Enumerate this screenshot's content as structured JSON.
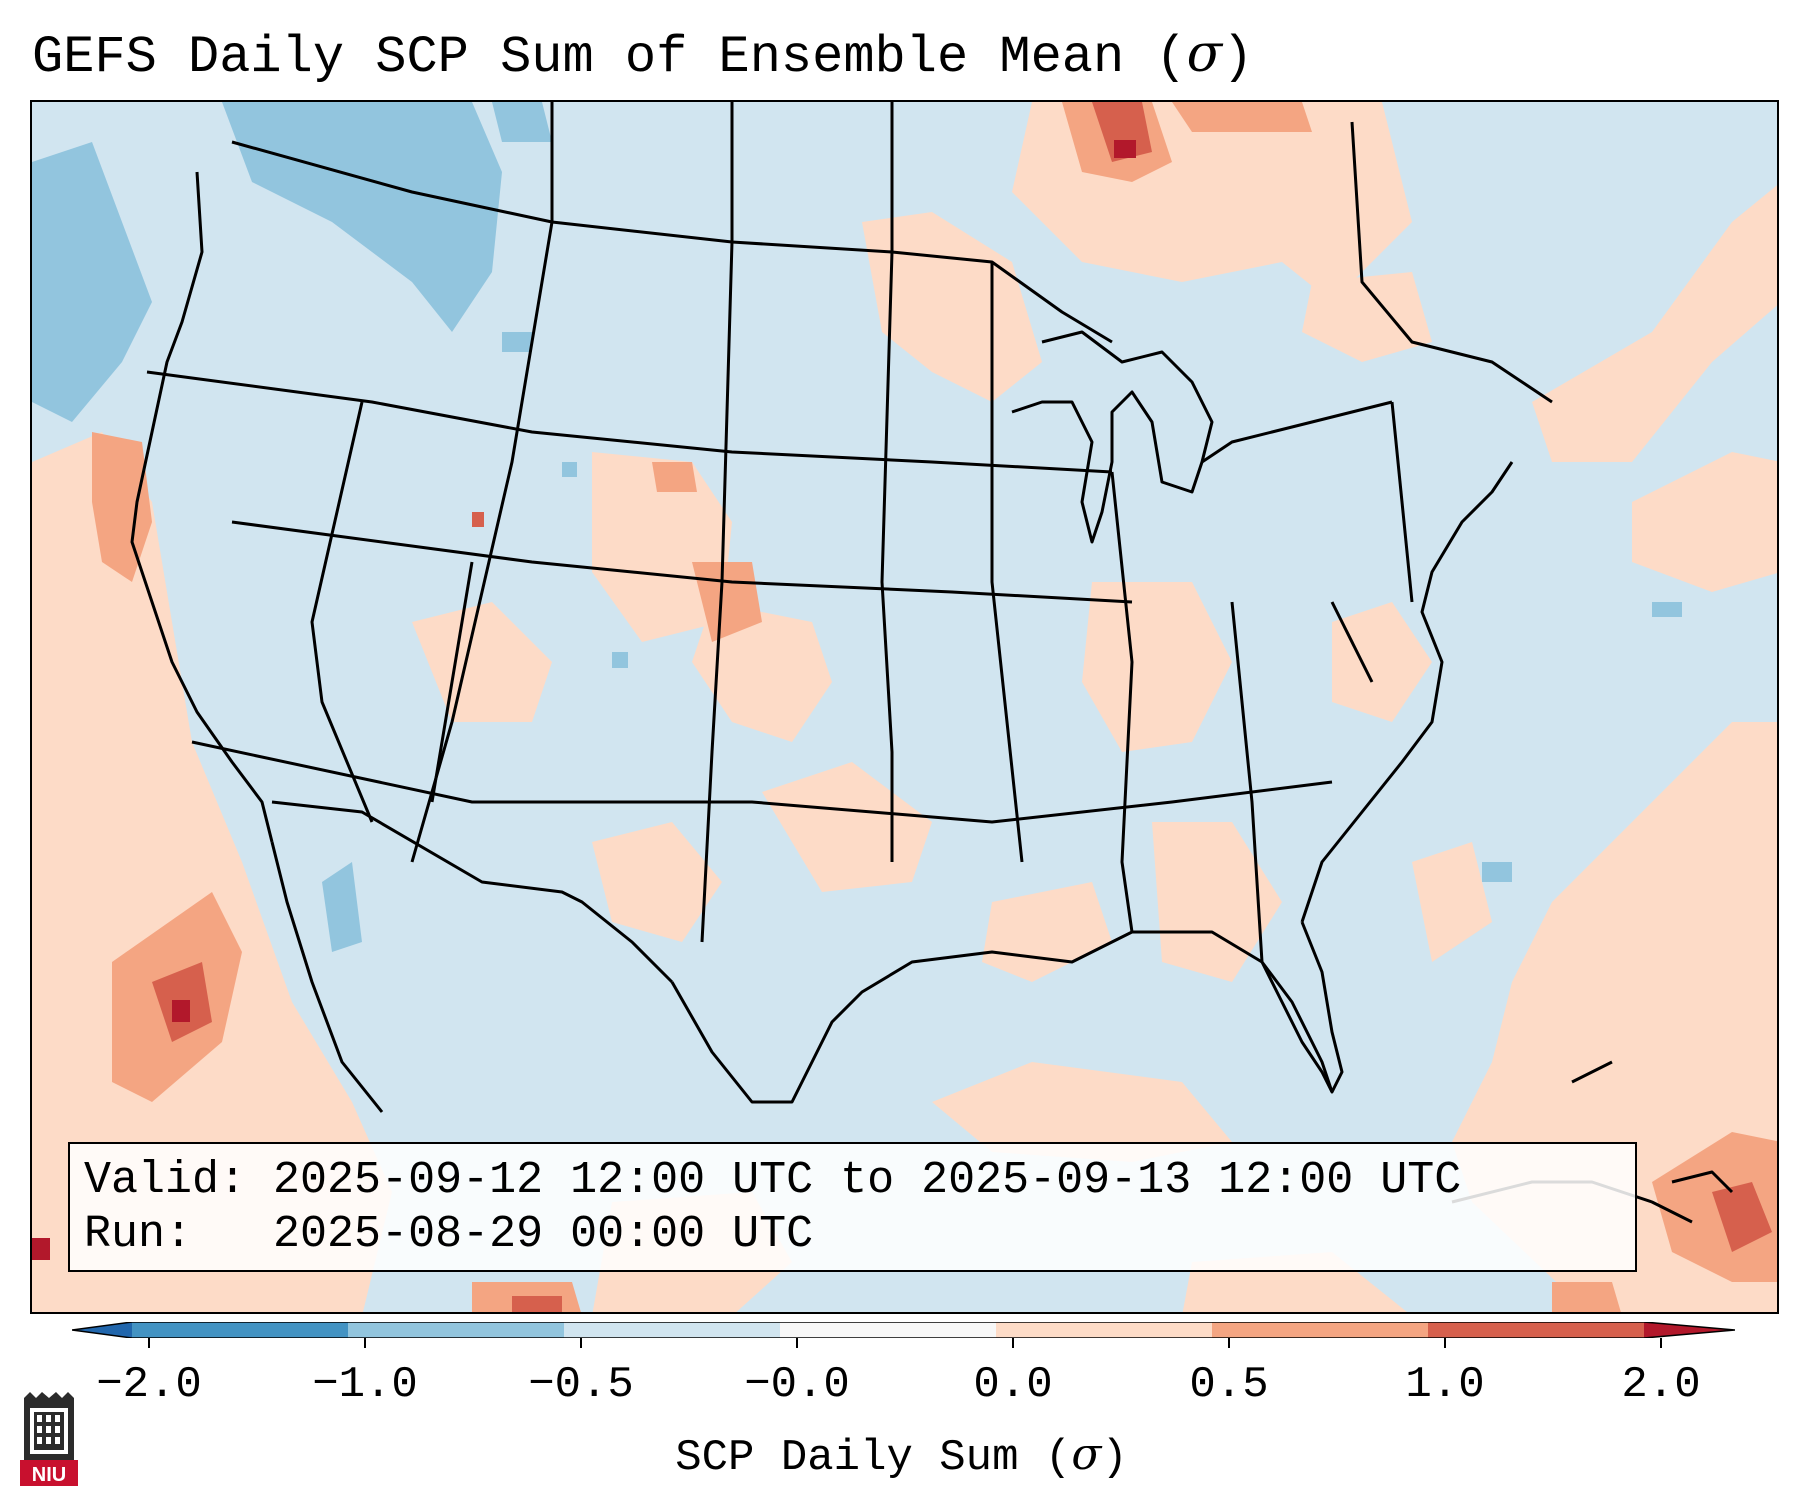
{
  "title": {
    "text": "GEFS Daily SCP Sum of Ensemble Mean (",
    "symbol": "σ",
    "close": ")"
  },
  "info": {
    "valid_label": "Valid:",
    "valid_value": "2025-09-12 12:00 UTC to 2025-09-13 12:00 UTC",
    "run_label": "Run:",
    "run_value": "2025-08-29 00:00 UTC"
  },
  "colorbar": {
    "label": "SCP Daily Sum (",
    "symbol": "σ",
    "close": ")",
    "ticks": [
      "−2.0",
      "−1.0",
      "−0.5",
      "−0.0",
      "0.0",
      "0.5",
      "1.0",
      "2.0"
    ],
    "colors": [
      "#4393c3",
      "#92c5de",
      "#d1e5f0",
      "#f7f7f7",
      "#fddbc7",
      "#f4a582",
      "#d6604d",
      "#b2182b"
    ],
    "extend_low_color": "#2166ac",
    "extend_high_color": "#b2182b"
  },
  "logo": {
    "text": "NIU"
  },
  "map": {
    "background_color": "#d1e5f0",
    "positive_color": "#fddbc7",
    "moderate_color": "#f4a582",
    "strong_color": "#d6604d",
    "extreme_color": "#b2182b",
    "negative_color": "#92c5de"
  }
}
